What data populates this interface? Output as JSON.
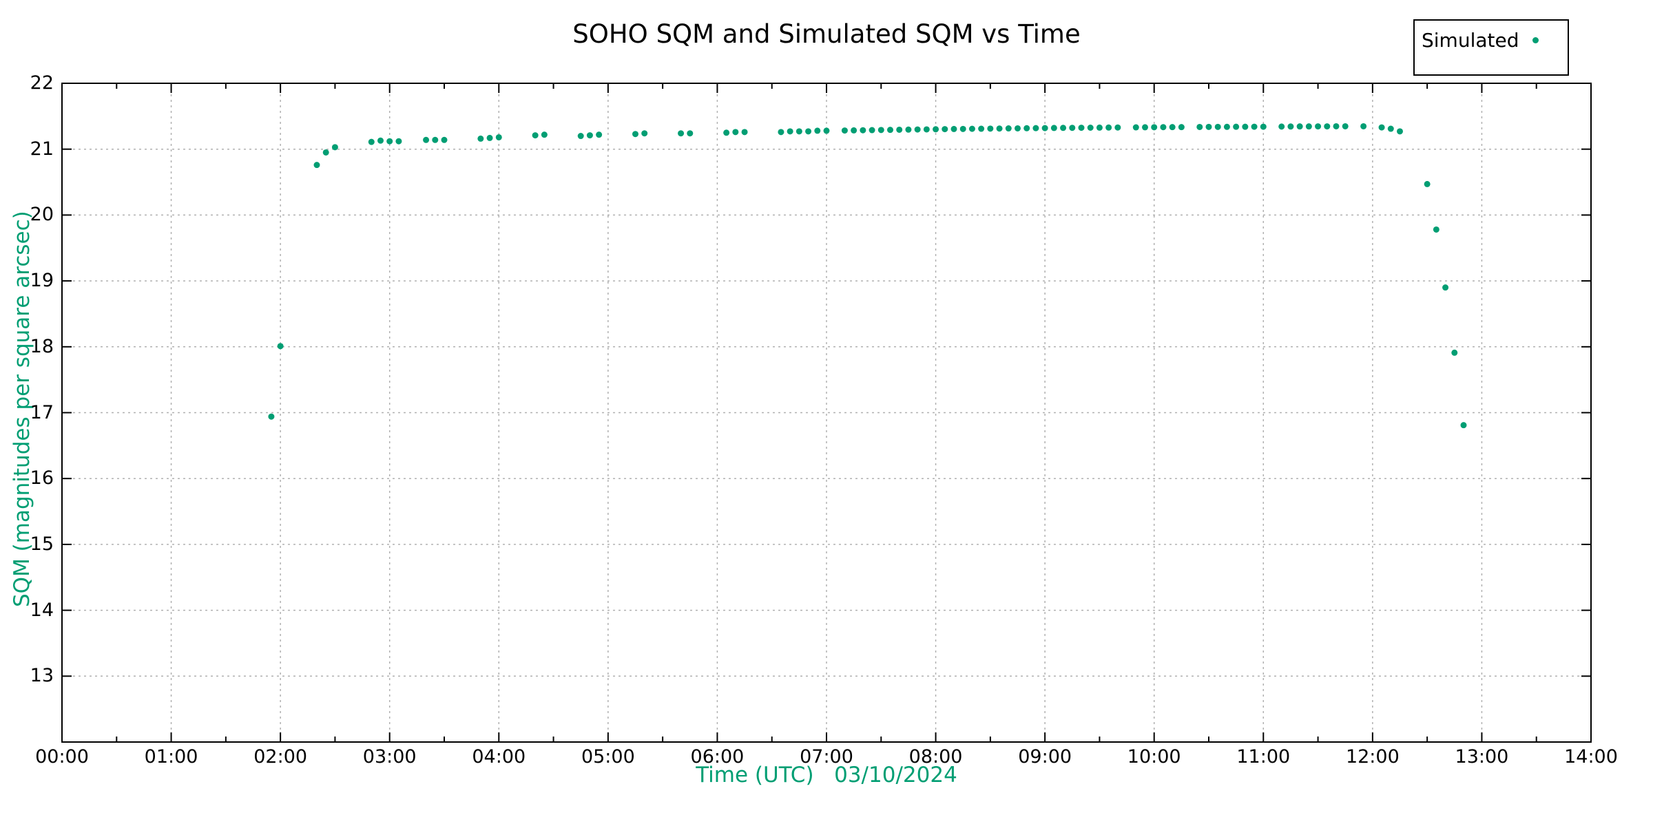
{
  "title": "SOHO SQM and Simulated SQM vs Time",
  "legend": {
    "label": "Simulated",
    "marker": "dot-icon"
  },
  "colors": {
    "series_green": "#009E73",
    "axis_text_green": "#009E73",
    "grid_gray": "#b0b0b0",
    "axis_black": "#000000",
    "background": "#ffffff"
  },
  "chart_data": {
    "type": "scatter",
    "title": "SOHO SQM and Simulated SQM vs Time",
    "xlabel": "Time (UTC)   03/10/2024",
    "ylabel": "SQM (magnitudes per square arcsec)",
    "x_tick_labels": [
      "00:00",
      "01:00",
      "02:00",
      "03:00",
      "04:00",
      "05:00",
      "06:00",
      "07:00",
      "08:00",
      "09:00",
      "10:00",
      "11:00",
      "12:00",
      "13:00",
      "14:00"
    ],
    "y_tick_labels": [
      13,
      14,
      15,
      16,
      17,
      18,
      19,
      20,
      21,
      22
    ],
    "xlim_hours": [
      0,
      14
    ],
    "ylim": [
      12,
      22
    ],
    "grid": true,
    "grid_style": "dashed",
    "legend_position": "top-right-outside",
    "series": [
      {
        "name": "Simulated",
        "marker": "dot",
        "color": "#009E73",
        "points": [
          [
            "01:55",
            16.94
          ],
          [
            "02:00",
            18.01
          ],
          [
            "02:20",
            20.76
          ],
          [
            "02:25",
            20.95
          ],
          [
            "02:30",
            21.03
          ],
          [
            "02:50",
            21.11
          ],
          [
            "02:55",
            21.13
          ],
          [
            "03:00",
            21.12
          ],
          [
            "03:05",
            21.12
          ],
          [
            "03:20",
            21.14
          ],
          [
            "03:25",
            21.14
          ],
          [
            "03:30",
            21.14
          ],
          [
            "03:50",
            21.16
          ],
          [
            "03:55",
            21.17
          ],
          [
            "04:00",
            21.18
          ],
          [
            "04:20",
            21.21
          ],
          [
            "04:25",
            21.22
          ],
          [
            "04:45",
            21.2
          ],
          [
            "04:50",
            21.21
          ],
          [
            "04:55",
            21.22
          ],
          [
            "05:15",
            21.23
          ],
          [
            "05:20",
            21.24
          ],
          [
            "05:40",
            21.24
          ],
          [
            "05:45",
            21.24
          ],
          [
            "06:05",
            21.25
          ],
          [
            "06:10",
            21.26
          ],
          [
            "06:15",
            21.26
          ],
          [
            "06:35",
            21.26
          ],
          [
            "06:40",
            21.27
          ],
          [
            "06:45",
            21.27
          ],
          [
            "06:50",
            21.27
          ],
          [
            "06:55",
            21.28
          ],
          [
            "07:00",
            21.28
          ],
          [
            "07:10",
            21.283
          ],
          [
            "07:15",
            21.285
          ],
          [
            "07:20",
            21.287
          ],
          [
            "07:25",
            21.289
          ],
          [
            "07:30",
            21.291
          ],
          [
            "07:35",
            21.293
          ],
          [
            "07:40",
            21.295
          ],
          [
            "07:45",
            21.297
          ],
          [
            "07:50",
            21.299
          ],
          [
            "07:55",
            21.3
          ],
          [
            "08:00",
            21.302
          ],
          [
            "08:05",
            21.304
          ],
          [
            "08:10",
            21.306
          ],
          [
            "08:15",
            21.307
          ],
          [
            "08:20",
            21.309
          ],
          [
            "08:25",
            21.31
          ],
          [
            "08:30",
            21.312
          ],
          [
            "08:35",
            21.313
          ],
          [
            "08:40",
            21.315
          ],
          [
            "08:45",
            21.316
          ],
          [
            "08:50",
            21.318
          ],
          [
            "08:55",
            21.319
          ],
          [
            "09:00",
            21.32
          ],
          [
            "09:05",
            21.322
          ],
          [
            "09:10",
            21.323
          ],
          [
            "09:15",
            21.324
          ],
          [
            "09:20",
            21.325
          ],
          [
            "09:25",
            21.326
          ],
          [
            "09:30",
            21.327
          ],
          [
            "09:35",
            21.328
          ],
          [
            "09:40",
            21.329
          ],
          [
            "09:50",
            21.331
          ],
          [
            "09:55",
            21.332
          ],
          [
            "10:00",
            21.333
          ],
          [
            "10:05",
            21.334
          ],
          [
            "10:10",
            21.335
          ],
          [
            "10:15",
            21.335
          ],
          [
            "10:25",
            21.337
          ],
          [
            "10:30",
            21.338
          ],
          [
            "10:35",
            21.338
          ],
          [
            "10:40",
            21.339
          ],
          [
            "10:45",
            21.34
          ],
          [
            "10:50",
            21.34
          ],
          [
            "10:55",
            21.341
          ],
          [
            "11:00",
            21.341
          ],
          [
            "11:10",
            21.343
          ],
          [
            "11:15",
            21.344
          ],
          [
            "11:20",
            21.345
          ],
          [
            "11:25",
            21.345
          ],
          [
            "11:30",
            21.346
          ],
          [
            "11:35",
            21.346
          ],
          [
            "11:40",
            21.347
          ],
          [
            "11:45",
            21.347
          ],
          [
            "11:55",
            21.347
          ],
          [
            "12:05",
            21.33
          ],
          [
            "12:10",
            21.31
          ],
          [
            "12:15",
            21.27
          ],
          [
            "12:30",
            20.47
          ],
          [
            "12:35",
            19.78
          ],
          [
            "12:40",
            18.9
          ],
          [
            "12:45",
            17.91
          ],
          [
            "12:50",
            16.81
          ]
        ]
      }
    ]
  }
}
